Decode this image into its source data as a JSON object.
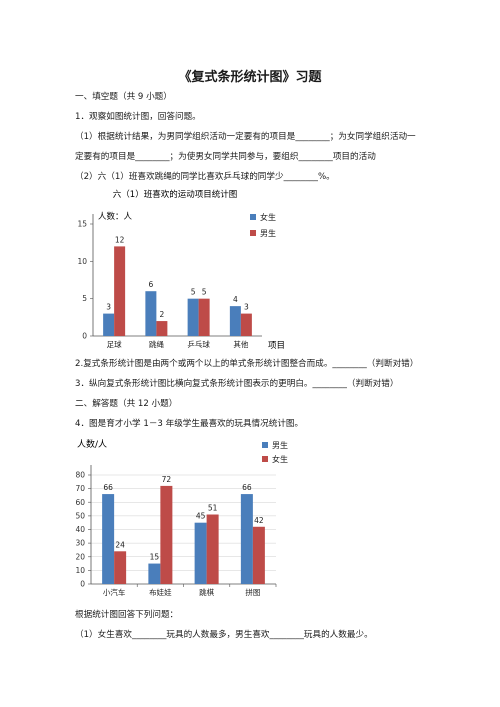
{
  "title": "《复式条形统计图》习题",
  "section1": "一、填空题（共 9 小题）",
  "q1": {
    "stem": "1．观察如图统计图，回答问题。",
    "p1_line1": "（1）根据统计结果，为男同学组织活动一定要有的项目是________；为女同学组织活动一",
    "p1_line2": "定要有的项目是________；为使男女同学共同参与，要组织________项目的活动",
    "p2": "（2）六（1）班喜欢跳绳的同学比喜欢乒乓球的同学少________%。"
  },
  "chart1": {
    "chart_data": {
      "type": "bar",
      "title": "六（1）班喜欢的运动项目统计图",
      "ylabel": "人数：人",
      "xlabel": "项目",
      "categories": [
        "足球",
        "跳绳",
        "乒乓球",
        "其他"
      ],
      "series": [
        {
          "name": "女生",
          "values": [
            3,
            6,
            5,
            4
          ],
          "color": "#4a7ebb"
        },
        {
          "name": "男生",
          "values": [
            12,
            2,
            5,
            3
          ],
          "color": "#be4b48"
        }
      ],
      "yticks": [
        "0",
        "5",
        "10",
        "15"
      ],
      "ylim": [
        0,
        15
      ],
      "legend": "right"
    }
  },
  "q2": "2.复式条形统计图是由两个或两个以上的单式条形统计图整合而成。________（判断对错）",
  "q3": "3．纵向复式条形统计图比横向复式条形统计图表示的更明白。________（判断对错）",
  "section2": "二、解答题（共 12 小题）",
  "q4": {
    "stem": "4．图是育才小学 1－3 年级学生最喜欢的玩具情况统计图。",
    "after": "根据统计图回答下列问题：",
    "p1": "（1）女生喜欢________玩具的人数最多，男生喜欢________玩具的人数最少。"
  },
  "chart2": {
    "chart_data": {
      "type": "bar",
      "ylabel": "人数/人",
      "categories": [
        "小汽车",
        "布娃娃",
        "跳棋",
        "拼图"
      ],
      "series": [
        {
          "name": "男生",
          "values": [
            66,
            15,
            45,
            66
          ],
          "color": "#4a7ebb"
        },
        {
          "name": "女生",
          "values": [
            24,
            72,
            51,
            42
          ],
          "color": "#be4b48"
        }
      ],
      "yticks": [
        "0",
        "10",
        "20",
        "30",
        "40",
        "50",
        "60",
        "70",
        "80"
      ],
      "ylim": [
        0,
        80
      ],
      "legend": "right"
    }
  }
}
